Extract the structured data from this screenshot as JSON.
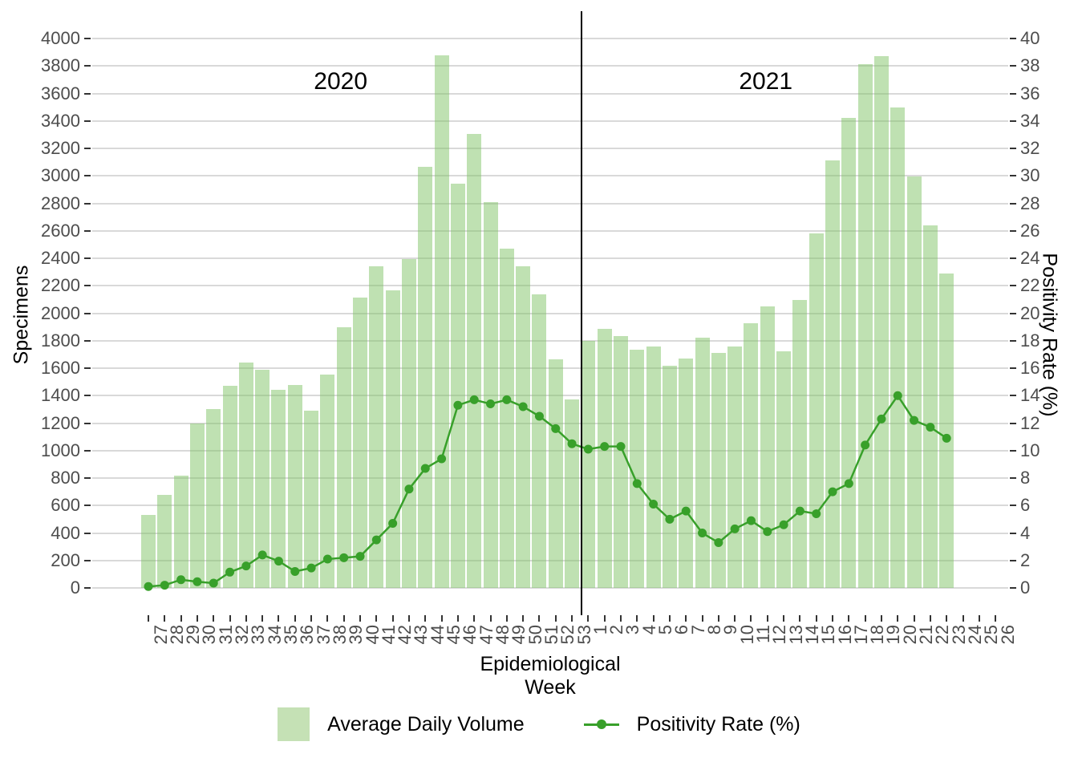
{
  "chart_data": {
    "type": "bar",
    "combo": "bar+line dual-axis",
    "title": "",
    "xlabel": "Epidemiological Week",
    "ylabel_left": "Specimens",
    "ylabel_right": "Positivity Rate (%)",
    "ylim_left": [
      0,
      4000
    ],
    "ylim_right": [
      0,
      40
    ],
    "yticks_left": [
      0,
      200,
      400,
      600,
      800,
      1000,
      1200,
      1400,
      1600,
      1800,
      2000,
      2200,
      2400,
      2600,
      2800,
      3000,
      3200,
      3400,
      3600,
      3800,
      4000
    ],
    "yticks_right": [
      0,
      2,
      4,
      6,
      8,
      10,
      12,
      14,
      16,
      18,
      20,
      22,
      24,
      26,
      28,
      30,
      32,
      34,
      36,
      38,
      40
    ],
    "grid": true,
    "legend_position": "bottom",
    "categories": [
      "27",
      "28",
      "29",
      "30",
      "31",
      "32",
      "33",
      "34",
      "35",
      "36",
      "37",
      "38",
      "39",
      "40",
      "41",
      "42",
      "43",
      "44",
      "45",
      "46",
      "47",
      "48",
      "49",
      "50",
      "51",
      "52",
      "53",
      "1",
      "2",
      "3",
      "4",
      "5",
      "6",
      "7",
      "8",
      "9",
      "10",
      "11",
      "12",
      "13",
      "14",
      "15",
      "16",
      "17",
      "18",
      "19",
      "20",
      "21",
      "22",
      "23",
      "24",
      "25",
      "26"
    ],
    "annotations": [
      {
        "label": "2020",
        "center_index": 11.8
      },
      {
        "label": "2021",
        "center_index": 37.9
      }
    ],
    "divider_after_category": "53",
    "series": [
      {
        "name": "Average Daily Volume",
        "type": "bar",
        "axis": "left",
        "fill": "rgba(127,195,102,0.5)",
        "swatch": "#c5e1b5",
        "values": [
          530,
          675,
          815,
          1200,
          1300,
          1470,
          1640,
          1590,
          1440,
          1480,
          1290,
          1555,
          1900,
          2115,
          2340,
          2165,
          2395,
          3065,
          3875,
          2945,
          3305,
          2810,
          2470,
          2340,
          2135,
          1665,
          1375,
          1800,
          1885,
          1835,
          1735,
          1755,
          1620,
          1670,
          1820,
          1710,
          1760,
          1925,
          2050,
          1720,
          2095,
          2580,
          3115,
          3420,
          3815,
          3870,
          3500,
          2995,
          2640,
          2290,
          null,
          null,
          null
        ]
      },
      {
        "name": "Positivity Rate (%)",
        "type": "line",
        "axis": "right",
        "color": "#38a02a",
        "values": [
          0.1,
          0.2,
          0.6,
          0.45,
          0.35,
          1.15,
          1.6,
          2.4,
          1.95,
          1.2,
          1.45,
          2.1,
          2.2,
          2.3,
          3.5,
          4.7,
          7.2,
          8.7,
          9.4,
          13.3,
          13.7,
          13.4,
          13.7,
          13.2,
          12.5,
          11.6,
          10.5,
          10.1,
          10.3,
          10.3,
          7.6,
          6.1,
          5.0,
          5.6,
          4.0,
          3.3,
          4.3,
          4.9,
          4.1,
          4.6,
          5.6,
          5.4,
          7.0,
          7.6,
          10.4,
          12.3,
          14.0,
          12.2,
          11.7,
          10.9,
          null,
          null,
          null
        ]
      }
    ],
    "colors": {
      "gridline": "#d9d9d9",
      "tick": "#333333",
      "tick_label": "#4d4d4d",
      "divider": "#000000",
      "background": "#ffffff"
    }
  },
  "legend": {
    "items": [
      {
        "label": "Average Daily Volume",
        "marker": "square"
      },
      {
        "label": "Positivity Rate (%)",
        "marker": "line-dot"
      }
    ]
  }
}
